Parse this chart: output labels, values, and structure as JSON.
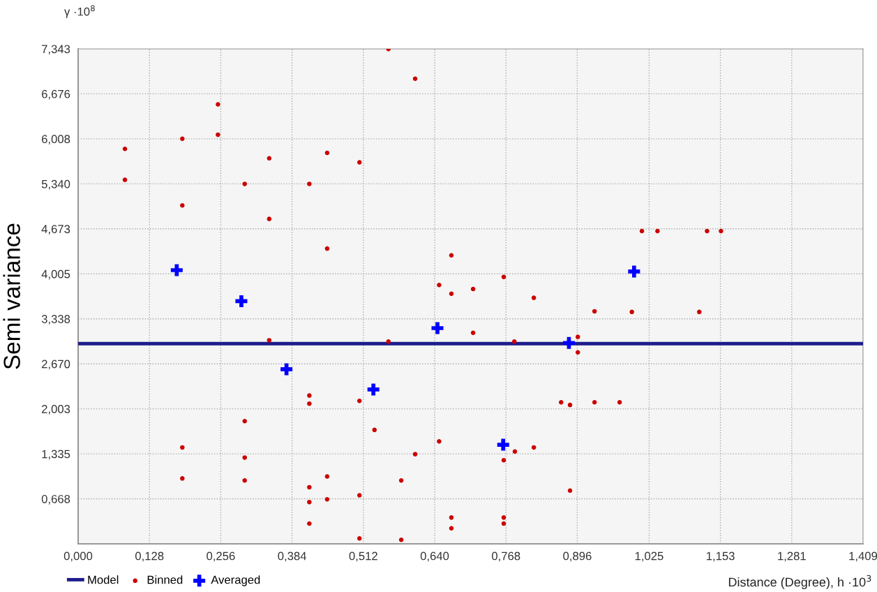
{
  "chart_data": {
    "type": "scatter",
    "ylabel": "Semi variance",
    "xlabel": "Distance (Degree), h ·10$^{3}$",
    "annotations": [
      "γ ·10$^{8}$"
    ],
    "xlim": [
      0,
      1.409
    ],
    "ylim": [
      0,
      7.343
    ],
    "xticks": [
      {
        "value": 0,
        "label": "0,000"
      },
      {
        "value": 0.128,
        "label": "0,128"
      },
      {
        "value": 0.256,
        "label": "0,256"
      },
      {
        "value": 0.384,
        "label": "0,384"
      },
      {
        "value": 0.512,
        "label": "0,512"
      },
      {
        "value": 0.64,
        "label": "0,640"
      },
      {
        "value": 0.768,
        "label": "0,768"
      },
      {
        "value": 0.896,
        "label": "0,896"
      },
      {
        "value": 1.025,
        "label": "1,025"
      },
      {
        "value": 1.153,
        "label": "1,153"
      },
      {
        "value": 1.281,
        "label": "1,281"
      },
      {
        "value": 1.409,
        "label": "1,409"
      }
    ],
    "yticks": [
      {
        "value": 0.668,
        "label": "0,668"
      },
      {
        "value": 1.335,
        "label": "1,335"
      },
      {
        "value": 2.003,
        "label": "2,003"
      },
      {
        "value": 2.67,
        "label": "2,670"
      },
      {
        "value": 3.338,
        "label": "3,338"
      },
      {
        "value": 4.005,
        "label": "4,005"
      },
      {
        "value": 4.673,
        "label": "4,673"
      },
      {
        "value": 5.34,
        "label": "5,340"
      },
      {
        "value": 6.008,
        "label": "6,008"
      },
      {
        "value": 6.676,
        "label": "6,676"
      },
      {
        "value": 7.343,
        "label": "7,343"
      }
    ],
    "grid": true,
    "legend": "bottom left",
    "series": [
      {
        "name": "Model",
        "type": "line",
        "color": "#1c1c8c",
        "marker": "none",
        "line_style": "solid",
        "x": [
          0,
          1.409
        ],
        "values": [
          2.97,
          2.97
        ]
      },
      {
        "name": "Binned",
        "color": "#cc0000",
        "marker": "circle",
        "x": [
          0.084,
          0.084,
          0.187,
          0.187,
          0.187,
          0.187,
          0.251,
          0.251,
          0.299,
          0.299,
          0.299,
          0.299,
          0.343,
          0.343,
          0.343,
          0.415,
          0.415,
          0.415,
          0.415,
          0.415,
          0.415,
          0.447,
          0.447,
          0.447,
          0.447,
          0.505,
          0.505,
          0.505,
          0.505,
          0.532,
          0.557,
          0.557,
          0.58,
          0.58,
          0.605,
          0.605,
          0.648,
          0.648,
          0.67,
          0.67,
          0.67,
          0.67,
          0.709,
          0.709,
          0.764,
          0.764,
          0.764,
          0.764,
          0.783,
          0.784,
          0.818,
          0.818,
          0.867,
          0.883,
          0.883,
          0.897,
          0.897,
          0.927,
          0.927,
          0.972,
          0.994,
          1.012,
          1.04,
          1.115,
          1.129,
          1.154
        ],
        "values": [
          5.86,
          5.4,
          6.01,
          5.02,
          1.43,
          0.97,
          6.52,
          6.07,
          5.34,
          1.82,
          1.28,
          0.94,
          5.72,
          4.82,
          3.02,
          5.34,
          2.2,
          2.08,
          0.84,
          0.62,
          0.3,
          5.8,
          4.38,
          1.0,
          0.66,
          5.66,
          2.12,
          0.72,
          0.08,
          1.69,
          7.34,
          3.0,
          0.94,
          0.06,
          6.9,
          1.33,
          3.84,
          1.52,
          4.28,
          3.71,
          0.39,
          0.23,
          3.78,
          3.13,
          3.96,
          1.24,
          0.39,
          0.3,
          3.0,
          1.37,
          3.65,
          1.43,
          2.1,
          2.06,
          0.79,
          3.07,
          2.84,
          3.45,
          2.1,
          2.1,
          3.44,
          4.64,
          4.64,
          3.44,
          4.64,
          4.64
        ]
      },
      {
        "name": "Averaged",
        "color": "#0000ff",
        "marker": "cross",
        "x": [
          0.177,
          0.293,
          0.374,
          0.53,
          0.645,
          0.763,
          0.881,
          0.998
        ],
        "values": [
          4.06,
          3.6,
          2.59,
          2.29,
          3.2,
          1.47,
          2.98,
          4.04
        ]
      }
    ]
  }
}
